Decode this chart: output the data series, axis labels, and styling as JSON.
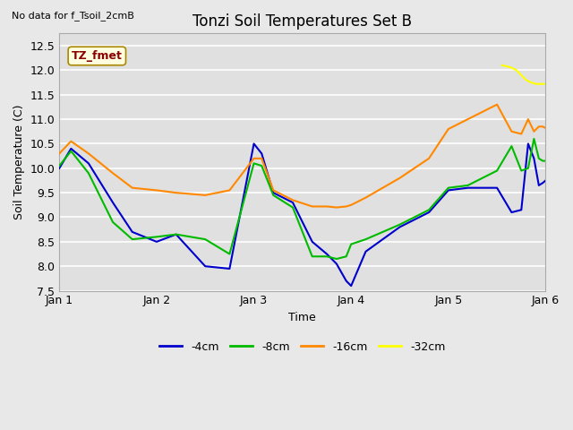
{
  "title": "Tonzi Soil Temperatures Set B",
  "no_data_text": "No data for f_Tsoil_2cmB",
  "tz_fmet_label": "TZ_fmet",
  "xlabel": "Time",
  "ylabel": "Soil Temperature (C)",
  "xlim": [
    0,
    5
  ],
  "ylim": [
    7.5,
    12.75
  ],
  "yticks": [
    7.5,
    8.0,
    8.5,
    9.0,
    9.5,
    10.0,
    10.5,
    11.0,
    11.5,
    12.0,
    12.5
  ],
  "xtick_positions": [
    0,
    1,
    2,
    3,
    4,
    5
  ],
  "xtick_labels": [
    "Jan 1",
    "Jan 2",
    "Jan 3",
    "Jan 4",
    "Jan 5",
    "Jan 6"
  ],
  "fig_bg_color": "#e8e8e8",
  "plot_bg_color": "#e0e0e0",
  "grid_color": "#ffffff",
  "colors": {
    "4cm": "#0000cc",
    "8cm": "#00bb00",
    "16cm": "#ff8800",
    "32cm": "#ffff00"
  },
  "series_4cm_x": [
    0.0,
    0.12,
    0.3,
    0.55,
    0.75,
    1.0,
    1.2,
    1.5,
    1.75,
    2.0,
    2.08,
    2.2,
    2.4,
    2.6,
    2.75,
    2.85,
    2.95,
    3.0,
    3.15,
    3.5,
    3.8,
    4.0,
    4.2,
    4.5,
    4.65,
    4.75,
    4.82,
    4.88,
    4.93,
    4.97,
    5.0
  ],
  "series_4cm_y": [
    10.0,
    10.4,
    10.1,
    9.3,
    8.7,
    8.5,
    8.65,
    8.0,
    7.95,
    10.5,
    10.3,
    9.5,
    9.3,
    8.5,
    8.25,
    8.05,
    7.7,
    7.6,
    8.3,
    8.8,
    9.1,
    9.55,
    9.6,
    9.6,
    9.1,
    9.15,
    10.5,
    10.2,
    9.65,
    9.7,
    9.75
  ],
  "series_8cm_x": [
    0.0,
    0.12,
    0.3,
    0.55,
    0.75,
    1.0,
    1.2,
    1.5,
    1.75,
    2.0,
    2.08,
    2.2,
    2.4,
    2.6,
    2.75,
    2.85,
    2.95,
    3.0,
    3.15,
    3.5,
    3.8,
    4.0,
    4.2,
    4.5,
    4.65,
    4.75,
    4.82,
    4.88,
    4.93,
    4.97,
    5.0
  ],
  "series_8cm_y": [
    10.05,
    10.35,
    9.9,
    8.9,
    8.55,
    8.6,
    8.65,
    8.55,
    8.25,
    10.1,
    10.05,
    9.45,
    9.2,
    8.2,
    8.2,
    8.15,
    8.2,
    8.45,
    8.55,
    8.85,
    9.15,
    9.6,
    9.65,
    9.95,
    10.45,
    9.95,
    10.0,
    10.6,
    10.2,
    10.15,
    10.15
  ],
  "series_16cm_x": [
    0.0,
    0.12,
    0.3,
    0.55,
    0.75,
    1.0,
    1.2,
    1.5,
    1.75,
    2.0,
    2.08,
    2.2,
    2.4,
    2.6,
    2.75,
    2.85,
    2.95,
    3.0,
    3.15,
    3.5,
    3.8,
    4.0,
    4.2,
    4.5,
    4.65,
    4.75,
    4.82,
    4.88,
    4.93,
    4.97,
    5.0
  ],
  "series_16cm_y": [
    10.3,
    10.55,
    10.3,
    9.9,
    9.6,
    9.55,
    9.5,
    9.45,
    9.55,
    10.2,
    10.2,
    9.55,
    9.35,
    9.22,
    9.22,
    9.2,
    9.22,
    9.25,
    9.4,
    9.8,
    10.2,
    10.8,
    11.0,
    11.3,
    10.75,
    10.7,
    11.0,
    10.75,
    10.85,
    10.85,
    10.82
  ],
  "series_32cm_x": [
    4.55,
    4.6,
    4.65,
    4.7,
    4.75,
    4.8,
    4.85,
    4.9,
    4.95,
    5.0
  ],
  "series_32cm_y": [
    12.1,
    12.08,
    12.05,
    12.0,
    11.9,
    11.8,
    11.75,
    11.72,
    11.72,
    11.72
  ],
  "legend_entries": [
    "-4cm",
    "-8cm",
    "-16cm",
    "-32cm"
  ],
  "legend_colors": [
    "#0000cc",
    "#00bb00",
    "#ff8800",
    "#ffff00"
  ]
}
